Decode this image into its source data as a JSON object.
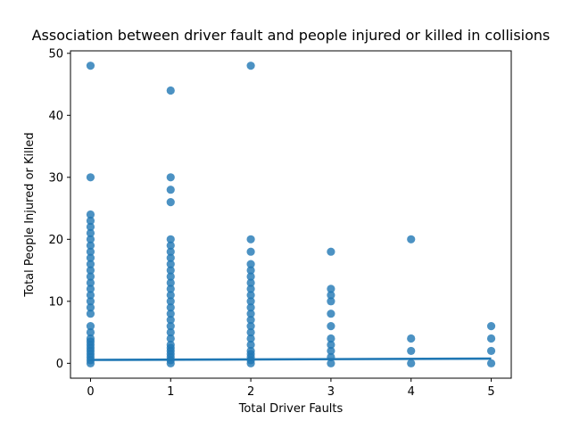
{
  "chart_data": {
    "type": "scatter",
    "title": "Association between driver fault and people injured or killed in collisions",
    "xlabel": "Total Driver Faults",
    "ylabel": "Total People Injured or Killed",
    "xlim": [
      -0.25,
      5.25
    ],
    "ylim": [
      -2.4,
      50.4
    ],
    "xticks": [
      0,
      1,
      2,
      3,
      4,
      5
    ],
    "yticks": [
      0,
      10,
      20,
      30,
      40,
      50
    ],
    "grid": false,
    "point_color": "#1f77b4",
    "line_color": "#1f77b4",
    "points": [
      {
        "x": 0,
        "y": [
          0,
          0.5,
          1,
          1.5,
          2,
          2.5,
          3,
          3.5,
          4,
          5,
          6,
          8,
          9,
          10,
          11,
          12,
          13,
          14,
          15,
          16,
          17,
          18,
          19,
          20,
          21,
          22,
          23,
          24,
          30,
          48
        ]
      },
      {
        "x": 1,
        "y": [
          0,
          0.5,
          1,
          1.5,
          2,
          2.5,
          3,
          4,
          5,
          6,
          7,
          8,
          9,
          10,
          11,
          12,
          13,
          14,
          15,
          16,
          17,
          18,
          19,
          20,
          26,
          28,
          30,
          44
        ]
      },
      {
        "x": 2,
        "y": [
          0,
          0.5,
          1,
          1.5,
          2,
          3,
          4,
          5,
          6,
          7,
          8,
          9,
          10,
          11,
          12,
          13,
          14,
          15,
          16,
          18,
          20,
          48
        ]
      },
      {
        "x": 3,
        "y": [
          0,
          1,
          2,
          3,
          4,
          6,
          8,
          10,
          11,
          12,
          18
        ]
      },
      {
        "x": 4,
        "y": [
          0,
          2,
          4,
          20
        ]
      },
      {
        "x": 5,
        "y": [
          0,
          2,
          4,
          6
        ]
      }
    ],
    "regression": {
      "x": [
        0,
        5
      ],
      "y": [
        0.55,
        0.75
      ]
    }
  }
}
